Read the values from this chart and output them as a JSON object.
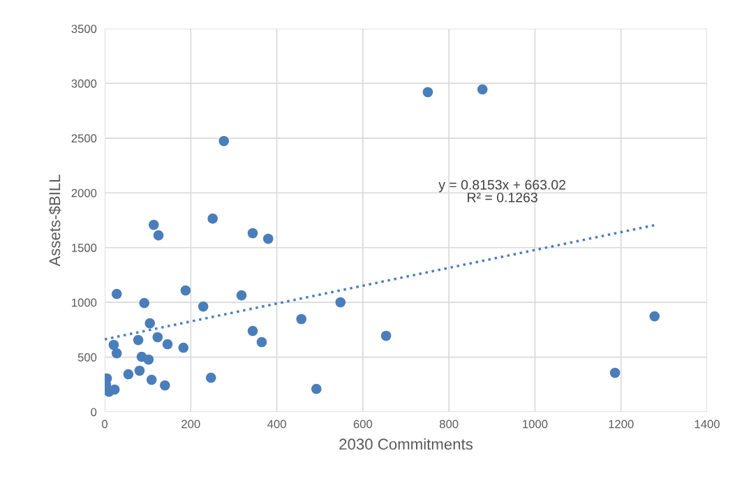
{
  "chart_data": {
    "type": "scatter",
    "xlabel": "2030 Commitments",
    "ylabel": "Assets-$BILL",
    "xlim": [
      0,
      1400
    ],
    "xticks": [
      0,
      200,
      400,
      600,
      800,
      1000,
      1200,
      1400
    ],
    "ylim": [
      0,
      3500
    ],
    "yticks": [
      0,
      500,
      1000,
      1500,
      2000,
      2500,
      3000,
      3500
    ],
    "grid": true,
    "series": [
      {
        "color": "#4a7ebb",
        "marker": "circle",
        "x": [
          751,
          878,
          277,
          114,
          125,
          251,
          344,
          380,
          28,
          188,
          92,
          229,
          318,
          548,
          105,
          457,
          344,
          365,
          654,
          1278,
          21,
          28,
          78,
          123,
          146,
          183,
          86,
          102,
          81,
          55,
          109,
          140,
          247,
          492,
          1186,
          5,
          3,
          23,
          10
        ],
        "values": [
          2920,
          2945,
          2473,
          1708,
          1612,
          1765,
          1632,
          1581,
          1077,
          1109,
          994,
          962,
          1064,
          1001,
          809,
          848,
          739,
          637,
          695,
          873,
          612,
          535,
          656,
          682,
          618,
          586,
          503,
          478,
          376,
          344,
          293,
          242,
          312,
          210,
          357,
          306,
          249,
          204,
          185
        ]
      },
      {
        "type": "line",
        "color": "#4a7ebb",
        "line_style": "dotted",
        "x": [
          0,
          1280
        ],
        "values": [
          663,
          1707
        ]
      }
    ],
    "annotations": [
      "y = 0.8153x + 663.02\nR² = 0.1263"
    ]
  }
}
